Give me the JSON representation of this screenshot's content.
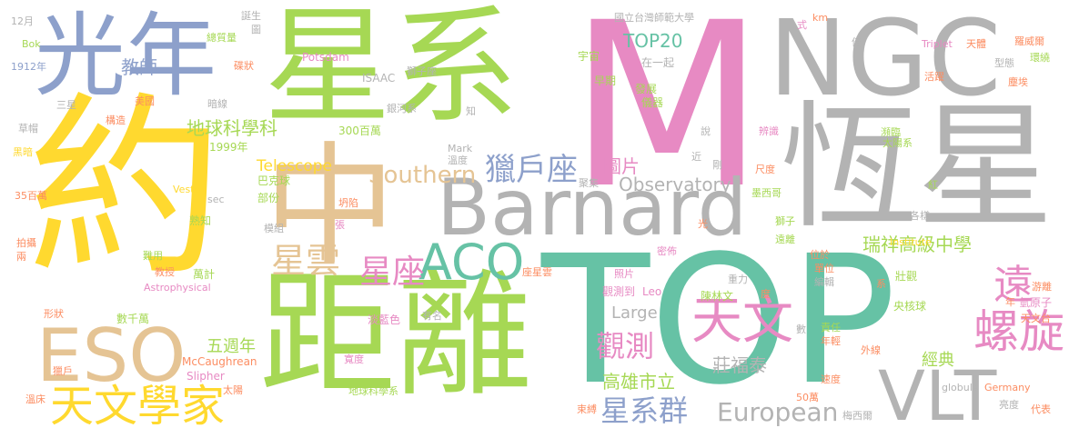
{
  "colors": {
    "background": "#ffffff",
    "green": "#a6d854",
    "teal": "#66c2a5",
    "pink": "#e78ac3",
    "gray": "#b3b3b3",
    "blue": "#8da0cb",
    "yellow": "#ffd92f",
    "tan": "#e5c494",
    "orange": "#fc8d62"
  },
  "words": [
    {
      "id": "word-m",
      "text": "M",
      "color": "pink"
    },
    {
      "id": "word-top",
      "text": "TOP",
      "color": "teal"
    },
    {
      "id": "word-yue",
      "text": "約",
      "color": "yellow"
    },
    {
      "id": "word-xingxi",
      "text": "星系",
      "color": "green"
    },
    {
      "id": "word-juli",
      "text": "距離",
      "color": "green"
    },
    {
      "id": "word-ngc",
      "text": "NGC",
      "color": "gray"
    },
    {
      "id": "word-hengxing",
      "text": "恆星",
      "color": "gray"
    },
    {
      "id": "word-barnard",
      "text": "Barnard",
      "color": "gray"
    },
    {
      "id": "word-zhong",
      "text": "中",
      "color": "tan"
    },
    {
      "id": "word-guangnian",
      "text": "光年",
      "color": "blue"
    },
    {
      "id": "word-eso",
      "text": "ESO",
      "color": "tan"
    },
    {
      "id": "word-vlt",
      "text": "VLT",
      "color": "gray"
    },
    {
      "id": "word-tianwenxuejia",
      "text": "天文學家",
      "color": "yellow"
    },
    {
      "id": "word-tianwen",
      "text": "天文",
      "color": "pink"
    },
    {
      "id": "word-luoxuan",
      "text": "螺旋",
      "color": "pink"
    },
    {
      "id": "word-aco",
      "text": "ACO",
      "color": "teal"
    },
    {
      "id": "word-liehuzuo",
      "text": "獵戶座",
      "color": "blue"
    },
    {
      "id": "word-yuan",
      "text": "遠",
      "color": "pink"
    },
    {
      "id": "word-southern",
      "text": "Southern",
      "color": "tan"
    },
    {
      "id": "word-xingyun",
      "text": "星雲",
      "color": "tan"
    },
    {
      "id": "word-xingzuo",
      "text": "星座",
      "color": "pink"
    },
    {
      "id": "word-guance",
      "text": "觀測",
      "color": "pink"
    },
    {
      "id": "word-xingxiqun",
      "text": "星系群",
      "color": "blue"
    },
    {
      "id": "word-european",
      "text": "European",
      "color": "gray"
    },
    {
      "id": "word-observatory",
      "text": "Observatory",
      "color": "gray"
    },
    {
      "id": "word-top20",
      "text": "TOP20",
      "color": "teal"
    },
    {
      "id": "word-ruixiang",
      "text": "瑞祥高級中學",
      "color": "green"
    },
    {
      "id": "word-jiaoshi",
      "text": "教師",
      "color": "blue"
    },
    {
      "id": "word-diqiukexueke",
      "text": "地球科學科",
      "color": "green"
    },
    {
      "id": "word-telescope",
      "text": "Telescope",
      "color": "yellow"
    },
    {
      "id": "word-tupian",
      "text": "圖片",
      "color": "pink"
    },
    {
      "id": "word-gaoxiong",
      "text": "高雄市立",
      "color": "green"
    },
    {
      "id": "word-zhuangfutai",
      "text": "莊福泰",
      "color": "gray"
    },
    {
      "id": "word-large",
      "text": "Large",
      "color": "gray"
    },
    {
      "id": "word-wuzhounian",
      "text": "五週年",
      "color": "green"
    },
    {
      "id": "word-mccaughrean",
      "text": "McCaughrean",
      "color": "orange"
    },
    {
      "id": "word-jingdian",
      "text": "經典",
      "color": "green"
    },
    {
      "id": "word-slipher",
      "text": "Slipher",
      "color": "pink"
    },
    {
      "id": "word-taiyangxi",
      "text": "太陽系",
      "color": "green"
    },
    {
      "id": "word-qiqiuzi",
      "text": "氫原子",
      "color": "pink"
    },
    {
      "id": "word-yangxinqiu",
      "text": "央核球",
      "color": "green"
    },
    {
      "id": "word-zhuangguan",
      "text": "壯觀",
      "color": "green"
    },
    {
      "id": "word-guocetao",
      "text": "觀測到",
      "color": "pink"
    },
    {
      "id": "word-leo",
      "text": "Leo",
      "color": "pink"
    },
    {
      "id": "word-chenlinwen",
      "text": "陳林文",
      "color": "green"
    },
    {
      "id": "word-potsdam",
      "text": "Potsdam",
      "color": "pink"
    },
    {
      "id": "word-isaac",
      "text": "ISAAC",
      "color": "gray"
    },
    {
      "id": "word-shizizuo",
      "text": "獅子座",
      "color": "gray"
    },
    {
      "id": "word-guoli",
      "text": "國立台灣師範大學",
      "color": "gray"
    },
    {
      "id": "word-yuzhou",
      "text": "宇宙",
      "color": "green"
    },
    {
      "id": "word-zaoqi",
      "text": "早期",
      "color": "green"
    },
    {
      "id": "word-zaiyiqi",
      "text": "在一起",
      "color": "gray"
    },
    {
      "id": "word-fazhan",
      "text": "發展",
      "color": "green"
    },
    {
      "id": "word-yiqi",
      "text": "儀器",
      "color": "green"
    },
    {
      "id": "word-zhi",
      "text": "知",
      "color": "gray"
    },
    {
      "id": "word-yinhexi",
      "text": "銀河系",
      "color": "gray"
    },
    {
      "id": "word-300baiwan",
      "text": "300百萬",
      "color": "green"
    },
    {
      "id": "word-mark",
      "text": "Mark",
      "color": "gray"
    },
    {
      "id": "word-wendu",
      "text": "溫度",
      "color": "gray"
    },
    {
      "id": "word-juji",
      "text": "聚集",
      "color": "gray"
    },
    {
      "id": "word-kanxian",
      "text": "坍陷",
      "color": "orange"
    },
    {
      "id": "word-zhang",
      "text": "張",
      "color": "pink"
    },
    {
      "id": "word-bakeqiu",
      "text": "巴克球",
      "color": "green"
    },
    {
      "id": "word-bufen",
      "text": "部份",
      "color": "green"
    },
    {
      "id": "word-mozu",
      "text": "模組",
      "color": "gray"
    },
    {
      "id": "word-vesto",
      "text": "Vesto",
      "color": "yellow"
    },
    {
      "id": "word-sec",
      "text": "sec",
      "color": "gray"
    },
    {
      "id": "word-1999",
      "text": "1999年",
      "color": "green"
    },
    {
      "id": "word-shuzhi",
      "text": "熟知",
      "color": "green"
    },
    {
      "id": "word-nanyong",
      "text": "難用",
      "color": "green"
    },
    {
      "id": "word-jiaoshou",
      "text": "教授",
      "color": "orange"
    },
    {
      "id": "word-wanji",
      "text": "萬計",
      "color": "green"
    },
    {
      "id": "word-astrophysical",
      "text": "Astrophysical",
      "color": "pink"
    },
    {
      "id": "word-shuqianwan",
      "text": "數千萬",
      "color": "green"
    },
    {
      "id": "word-xingzhuang",
      "text": "形狀",
      "color": "orange"
    },
    {
      "id": "word-lie",
      "text": "獵戶",
      "color": "orange"
    },
    {
      "id": "word-wenchuang",
      "text": "溫床",
      "color": "orange"
    },
    {
      "id": "word-taiyang",
      "text": "太陽",
      "color": "orange"
    },
    {
      "id": "word-diqiukexuexi",
      "text": "地球科學系",
      "color": "green"
    },
    {
      "id": "word-kuandu",
      "text": "寬度",
      "color": "pink"
    },
    {
      "id": "word-danlanse",
      "text": "淡藍色",
      "color": "pink"
    },
    {
      "id": "word-youming",
      "text": "有名",
      "color": "gray"
    },
    {
      "id": "word-zuoxingyun",
      "text": "座星雲",
      "color": "orange"
    },
    {
      "id": "word-zhaopian",
      "text": "照片",
      "color": "pink"
    },
    {
      "id": "word-mihua",
      "text": "密佈",
      "color": "pink"
    },
    {
      "id": "word-guang",
      "text": "光",
      "color": "orange"
    },
    {
      "id": "word-zhongli",
      "text": "重力",
      "color": "gray"
    },
    {
      "id": "word-shu",
      "text": "數",
      "color": "gray"
    },
    {
      "id": "word-du",
      "text": "度",
      "color": "orange"
    },
    {
      "id": "word-shuoming",
      "text": "說",
      "color": "gray"
    },
    {
      "id": "word-jin",
      "text": "近",
      "color": "gray"
    },
    {
      "id": "word-gang",
      "text": "剛",
      "color": "gray"
    },
    {
      "id": "word-bianshi",
      "text": "辨識",
      "color": "pink"
    },
    {
      "id": "word-chidu",
      "text": "尺度",
      "color": "orange"
    },
    {
      "id": "word-moxige",
      "text": "墨西哥",
      "color": "green"
    },
    {
      "id": "word-shizi",
      "text": "獅子",
      "color": "green"
    },
    {
      "id": "word-yuanli",
      "text": "遠離",
      "color": "green"
    },
    {
      "id": "word-weiyu",
      "text": "位於",
      "color": "orange"
    },
    {
      "id": "word-danwei",
      "text": "單位",
      "color": "orange"
    },
    {
      "id": "word-bianji",
      "text": "編輯",
      "color": "gray"
    },
    {
      "id": "word-xi",
      "text": "系",
      "color": "orange"
    },
    {
      "id": "word-zeren",
      "text": "責任",
      "color": "green"
    },
    {
      "id": "word-nianqing",
      "text": "年輕",
      "color": "orange"
    },
    {
      "id": "word-waixian",
      "text": "外線",
      "color": "orange"
    },
    {
      "id": "word-sudu",
      "text": "速度",
      "color": "orange"
    },
    {
      "id": "word-germany",
      "text": "Germany",
      "color": "orange"
    },
    {
      "id": "word-50wan",
      "text": "50萬",
      "color": "orange"
    },
    {
      "id": "word-shufu",
      "text": "束縛",
      "color": "orange"
    },
    {
      "id": "word-meixier",
      "text": "梅西爾",
      "color": "gray"
    },
    {
      "id": "word-globule",
      "text": "globule",
      "color": "gray"
    },
    {
      "id": "word-liangdu",
      "text": "亮度",
      "color": "gray"
    },
    {
      "id": "word-daibiao",
      "text": "代表",
      "color": "orange"
    },
    {
      "id": "word-nian",
      "text": "年",
      "color": "orange"
    },
    {
      "id": "word-tianwentai",
      "text": "天文台",
      "color": "orange"
    },
    {
      "id": "word-youmu",
      "text": "游離",
      "color": "orange"
    },
    {
      "id": "word-institute",
      "text": "Institute",
      "color": "yellow"
    },
    {
      "id": "word-geyang",
      "text": "各樣",
      "color": "gray"
    },
    {
      "id": "word-hong",
      "text": "紅",
      "color": "green"
    },
    {
      "id": "word-binlin",
      "text": "瀕臨",
      "color": "green"
    },
    {
      "id": "word-chenai",
      "text": "塵埃",
      "color": "orange"
    },
    {
      "id": "word-huoyue",
      "text": "活躍",
      "color": "orange"
    },
    {
      "id": "word-xingtai",
      "text": "型態",
      "color": "gray"
    },
    {
      "id": "word-huanrao",
      "text": "環繞",
      "color": "green"
    },
    {
      "id": "word-luoweier",
      "text": "羅威爾",
      "color": "orange"
    },
    {
      "id": "word-triplet",
      "text": "Triplet",
      "color": "pink"
    },
    {
      "id": "word-tianti",
      "text": "天體",
      "color": "orange"
    },
    {
      "id": "word-bei",
      "text": "倍",
      "color": "gray"
    },
    {
      "id": "word-km",
      "text": "km",
      "color": "orange"
    },
    {
      "id": "word-shi",
      "text": "式",
      "color": "pink"
    },
    {
      "id": "word-dansheng",
      "text": "誕生",
      "color": "gray"
    },
    {
      "id": "word-tu",
      "text": "圖",
      "color": "gray"
    },
    {
      "id": "word-zongzhiliang",
      "text": "總質量",
      "color": "green"
    },
    {
      "id": "word-diezhuang",
      "text": "碟狀",
      "color": "orange"
    },
    {
      "id": "word-anxian",
      "text": "暗線",
      "color": "gray"
    },
    {
      "id": "word-meiguo",
      "text": "美國",
      "color": "orange"
    },
    {
      "id": "word-gouzao",
      "text": "構造",
      "color": "orange"
    },
    {
      "id": "word-sanxing",
      "text": "三星",
      "color": "gray"
    },
    {
      "id": "word-caomao",
      "text": "草帽",
      "color": "gray"
    },
    {
      "id": "word-heian",
      "text": "黑暗",
      "color": "yellow"
    },
    {
      "id": "word-35baiwan",
      "text": "35百萬",
      "color": "orange"
    },
    {
      "id": "word-paishe",
      "text": "拍攝",
      "color": "orange"
    },
    {
      "id": "word-liang",
      "text": "兩",
      "color": "orange"
    },
    {
      "id": "word-12yue",
      "text": "12月",
      "color": "gray"
    },
    {
      "id": "word-bok",
      "text": "Bok",
      "color": "green"
    },
    {
      "id": "word-1912",
      "text": "1912年",
      "color": "blue"
    }
  ]
}
